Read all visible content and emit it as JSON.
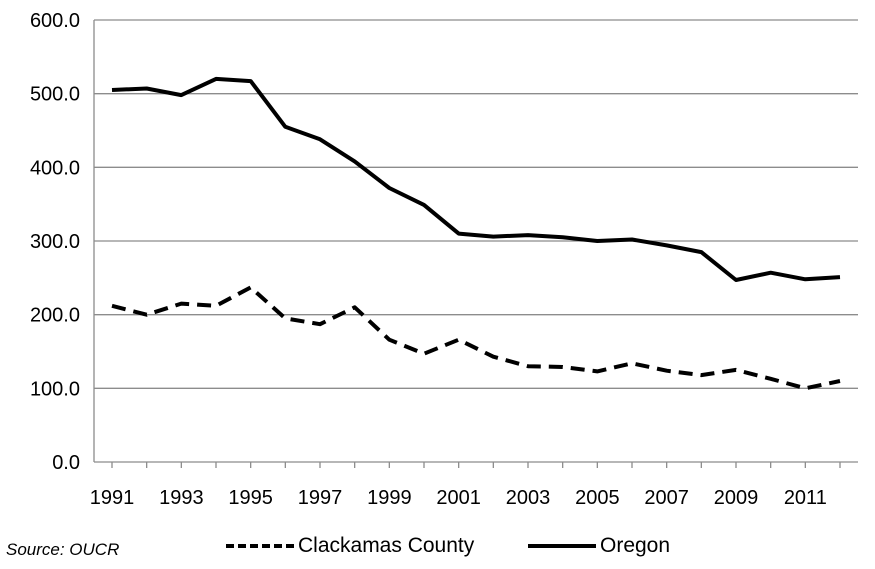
{
  "chart_data": {
    "type": "line",
    "x": [
      1991,
      1992,
      1993,
      1994,
      1995,
      1996,
      1997,
      1998,
      1999,
      2000,
      2001,
      2002,
      2003,
      2004,
      2005,
      2006,
      2007,
      2008,
      2009,
      2010,
      2011,
      2012
    ],
    "x_tick_labels": [
      "1991",
      "1993",
      "1995",
      "1997",
      "1999",
      "2001",
      "2003",
      "2005",
      "2007",
      "2009",
      "2011"
    ],
    "y_tick_labels": [
      "0.0",
      "100.0",
      "200.0",
      "300.0",
      "400.0",
      "500.0",
      "600.0"
    ],
    "ylim": [
      0,
      600
    ],
    "grid": "horizontal",
    "legend_placement": "bottom",
    "series": [
      {
        "name": "Clackamas County",
        "style": "dashed",
        "color": "#000000",
        "values": [
          212,
          200,
          215,
          212,
          237,
          195,
          187,
          210,
          166,
          147,
          166,
          143,
          130,
          129,
          123,
          134,
          124,
          118,
          125,
          113,
          100,
          110
        ]
      },
      {
        "name": "Oregon",
        "style": "solid",
        "color": "#000000",
        "values": [
          505,
          507,
          498,
          520,
          517,
          455,
          438,
          408,
          372,
          349,
          310,
          306,
          308,
          305,
          300,
          302,
          294,
          285,
          247,
          257,
          248,
          251
        ]
      }
    ]
  },
  "legend": {
    "source": "Source: OUCR",
    "series1_label": "Clackamas County",
    "series2_label": "Oregon"
  }
}
